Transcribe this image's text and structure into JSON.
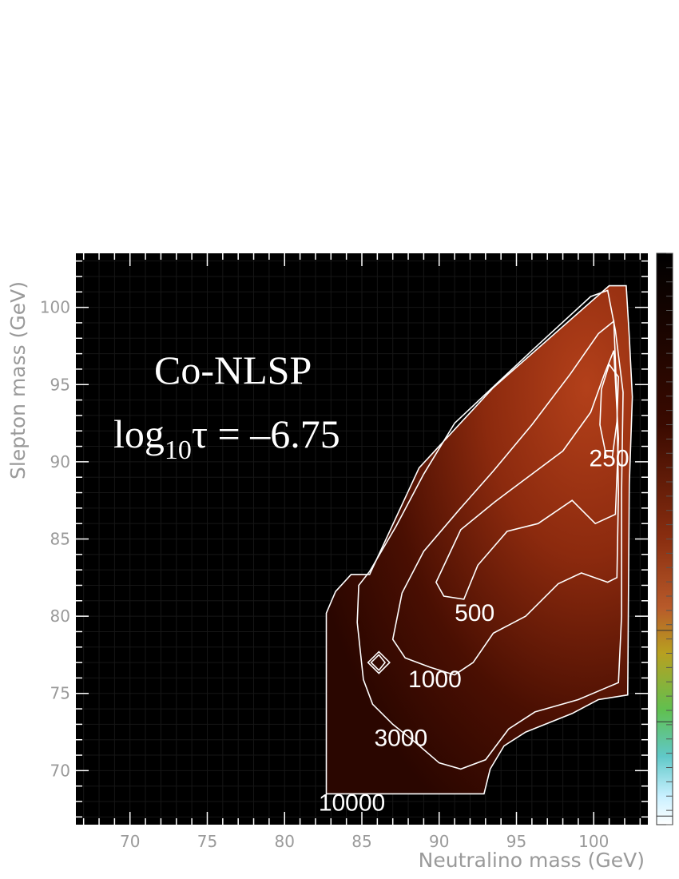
{
  "chart_data": {
    "type": "heatmap",
    "title": "",
    "xlabel": "Neutralino mass (GeV)",
    "ylabel": "Slepton mass (GeV)",
    "xlim": [
      66.5,
      103.5
    ],
    "ylim": [
      66.5,
      103.5
    ],
    "x_ticks": [
      70,
      75,
      80,
      85,
      90,
      95,
      100
    ],
    "y_ticks": [
      70,
      75,
      80,
      85,
      90,
      95,
      100
    ],
    "annotation": {
      "line1": "Co-NLSP",
      "line2_prefix": "log",
      "line2_sub": "10",
      "line2_suffix": "τ = –6.75"
    },
    "colors": {
      "background": "#000000",
      "low": "#2a0600",
      "high": "#b3401a",
      "contour": "#ffffff",
      "axis_text": "#9a9a9a"
    },
    "colorbar_colors": [
      "#000000",
      "#3a0a00",
      "#8a2e10",
      "#b85a2a",
      "#b8a020",
      "#60c050",
      "#60c8c8",
      "#c8f0ff",
      "#ffffff"
    ],
    "contours": [
      {
        "label": "10000",
        "label_at": [
          82.2,
          67.4
        ],
        "points": [
          [
            82.7,
            68.5
          ],
          [
            92.9,
            68.5
          ],
          [
            93.3,
            70.1
          ],
          [
            94.2,
            71.6
          ],
          [
            95.6,
            72.5
          ],
          [
            98.6,
            73.7
          ],
          [
            100.3,
            74.6
          ],
          [
            102.2,
            74.9
          ],
          [
            102.3,
            88.5
          ],
          [
            102.5,
            94.2
          ],
          [
            102.3,
            98.1
          ],
          [
            102.1,
            101.4
          ],
          [
            101.0,
            101.4
          ],
          [
            93.5,
            94.8
          ],
          [
            88.7,
            89.6
          ],
          [
            85.5,
            82.7
          ],
          [
            84.3,
            82.7
          ],
          [
            83.3,
            81.6
          ],
          [
            82.7,
            80.2
          ]
        ]
      },
      {
        "label": "3000",
        "label_at": [
          85.8,
          71.6
        ],
        "points": [
          [
            84.8,
            82.0
          ],
          [
            84.7,
            79.6
          ],
          [
            85.1,
            75.9
          ],
          [
            85.7,
            74.3
          ],
          [
            87.0,
            73.0
          ],
          [
            88.5,
            71.8
          ],
          [
            90.0,
            70.5
          ],
          [
            91.4,
            70.1
          ],
          [
            93.0,
            70.7
          ],
          [
            94.5,
            72.7
          ],
          [
            96.2,
            73.8
          ],
          [
            99.0,
            74.6
          ],
          [
            101.6,
            75.7
          ],
          [
            101.8,
            80.0
          ],
          [
            101.8,
            88.0
          ],
          [
            101.9,
            94.5
          ],
          [
            101.4,
            98.5
          ],
          [
            100.9,
            101.1
          ],
          [
            99.8,
            100.7
          ],
          [
            96.0,
            97.2
          ],
          [
            91.0,
            92.5
          ],
          [
            89.0,
            89.2
          ],
          [
            87.2,
            85.8
          ],
          [
            85.5,
            82.9
          ]
        ]
      },
      {
        "label": "1000",
        "label_at": [
          88.0,
          75.4
        ],
        "points": [
          [
            87.0,
            78.5
          ],
          [
            87.6,
            81.5
          ],
          [
            89.0,
            84.2
          ],
          [
            91.3,
            86.9
          ],
          [
            93.5,
            89.4
          ],
          [
            96.0,
            92.4
          ],
          [
            98.5,
            95.7
          ],
          [
            100.3,
            98.3
          ],
          [
            101.3,
            99.1
          ],
          [
            101.5,
            94.0
          ],
          [
            101.6,
            88.0
          ],
          [
            101.5,
            82.5
          ],
          [
            100.9,
            82.2
          ],
          [
            99.2,
            82.8
          ],
          [
            97.7,
            82.1
          ],
          [
            95.6,
            80.0
          ],
          [
            93.5,
            78.9
          ],
          [
            92.2,
            77.0
          ],
          [
            91.0,
            76.2
          ],
          [
            89.4,
            76.7
          ],
          [
            87.8,
            77.3
          ]
        ]
      },
      {
        "label": "500",
        "label_at": [
          91.0,
          79.7
        ],
        "points": [
          [
            89.8,
            82.2
          ],
          [
            91.4,
            85.6
          ],
          [
            93.6,
            87.4
          ],
          [
            95.6,
            88.9
          ],
          [
            98.0,
            90.7
          ],
          [
            99.8,
            93.2
          ],
          [
            100.7,
            95.7
          ],
          [
            101.3,
            97.2
          ],
          [
            101.6,
            91.5
          ],
          [
            101.4,
            86.6
          ],
          [
            100.1,
            86.0
          ],
          [
            98.6,
            87.5
          ],
          [
            96.4,
            86.0
          ],
          [
            94.4,
            85.5
          ],
          [
            92.5,
            83.3
          ],
          [
            91.6,
            81.1
          ],
          [
            90.3,
            81.3
          ]
        ]
      },
      {
        "label": "250",
        "label_at": [
          99.7,
          89.7
        ],
        "points": [
          [
            100.8,
            90.4
          ],
          [
            100.4,
            92.4
          ],
          [
            100.5,
            94.7
          ],
          [
            101.0,
            96.3
          ],
          [
            101.6,
            95.5
          ],
          [
            101.5,
            92.6
          ],
          [
            101.2,
            90.3
          ]
        ]
      }
    ],
    "small_contours": [
      {
        "points": [
          [
            85.6,
            77.0
          ],
          [
            86.1,
            77.5
          ],
          [
            86.5,
            77.0
          ],
          [
            86.1,
            76.5
          ]
        ]
      },
      {
        "points": [
          [
            85.4,
            77.0
          ],
          [
            86.1,
            77.7
          ],
          [
            86.8,
            77.0
          ],
          [
            86.1,
            76.3
          ]
        ]
      }
    ]
  }
}
